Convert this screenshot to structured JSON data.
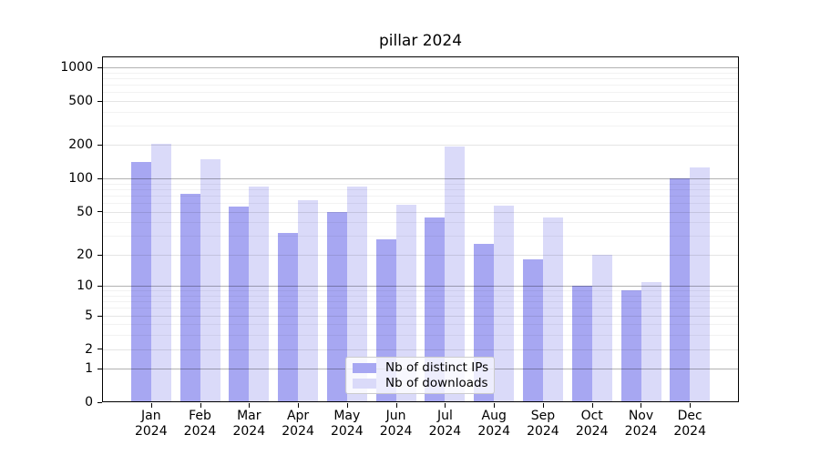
{
  "title": "pillar 2024",
  "chart_data": {
    "type": "bar",
    "title": "pillar 2024",
    "year": "2024",
    "categories": [
      "Jan",
      "Feb",
      "Mar",
      "Apr",
      "May",
      "Jun",
      "Jul",
      "Aug",
      "Sep",
      "Oct",
      "Nov",
      "Dec"
    ],
    "series": [
      {
        "name": "Nb of distinct IPs",
        "color": "#a7a7f2",
        "values": [
          140,
          73,
          56,
          32,
          50,
          28,
          44,
          25,
          18,
          10,
          9,
          100
        ]
      },
      {
        "name": "Nb of downloads",
        "color": "#dadaf9",
        "values": [
          205,
          148,
          84,
          64,
          85,
          58,
          193,
          57,
          44,
          20,
          11,
          127
        ]
      }
    ],
    "xlabel": "",
    "ylabel": "",
    "yscale": "log1p",
    "yticks": [
      0,
      1,
      2,
      5,
      10,
      20,
      50,
      100,
      200,
      500,
      1000
    ],
    "ylim": [
      0,
      1250
    ],
    "grid": true,
    "legend_position": "lower center"
  }
}
